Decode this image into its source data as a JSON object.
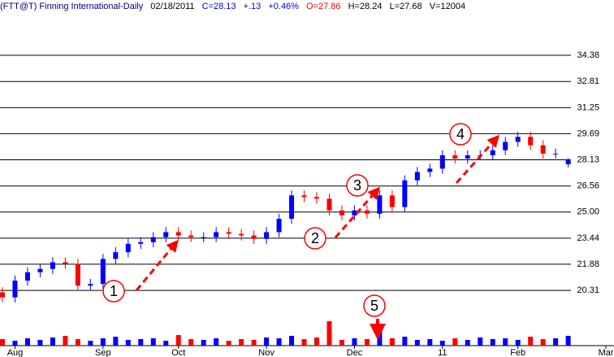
{
  "header": {
    "symbol": "(FTT@T) Finning International-Daily",
    "date": "02/18/2011",
    "close": "C=28.13",
    "change": "+.13",
    "change_pct": "+0.46%",
    "open": "O=27.86",
    "high": "H=28.24",
    "low": "L=27.68",
    "volume": "V=12004"
  },
  "chart_data": {
    "type": "candlestick",
    "categories": [
      null,
      "Aug",
      null,
      null,
      null,
      null,
      null,
      null,
      "Sep",
      null,
      null,
      null,
      null,
      null,
      "Oct",
      null,
      null,
      null,
      null,
      null,
      null,
      "Nov",
      null,
      null,
      null,
      null,
      null,
      null,
      "Dec",
      null,
      null,
      null,
      null,
      null,
      null,
      "11",
      null,
      null,
      null,
      null,
      null,
      "Feb",
      null,
      null,
      null,
      null,
      null,
      null,
      "Mar"
    ],
    "open": [
      20.2,
      19.9,
      20.9,
      21.4,
      21.6,
      22.0,
      21.9,
      20.6,
      20.7,
      22.2,
      22.6,
      23.1,
      23.2,
      23.5,
      23.8,
      23.6,
      23.5,
      23.5,
      23.8,
      23.7,
      23.6,
      23.4,
      23.8,
      24.6,
      26.0,
      25.9,
      25.8,
      25.1,
      24.8,
      25.1,
      24.9,
      26.0,
      25.3,
      26.9,
      27.4,
      27.6,
      28.4,
      28.2,
      28.4,
      28.4,
      28.7,
      29.2,
      29.5,
      29.0,
      28.5,
      27.86,
      null,
      null,
      null
    ],
    "high": [
      20.5,
      21.2,
      21.7,
      21.9,
      22.3,
      22.3,
      22.2,
      21.0,
      22.5,
      22.9,
      23.4,
      23.5,
      23.8,
      24.1,
      24.1,
      23.9,
      23.8,
      24.1,
      24.1,
      24.0,
      23.9,
      24.1,
      24.9,
      26.3,
      26.3,
      26.2,
      26.1,
      25.4,
      25.4,
      25.4,
      26.3,
      26.3,
      27.2,
      27.7,
      27.9,
      28.7,
      28.7,
      28.7,
      28.7,
      29.0,
      29.5,
      29.8,
      29.8,
      29.3,
      28.8,
      28.24,
      null,
      null,
      null
    ],
    "low": [
      19.6,
      19.6,
      20.6,
      21.1,
      21.3,
      21.6,
      20.3,
      20.3,
      20.4,
      21.9,
      22.3,
      22.8,
      22.9,
      23.2,
      23.3,
      23.2,
      23.2,
      23.2,
      23.4,
      23.3,
      23.1,
      23.1,
      23.5,
      24.3,
      25.6,
      25.5,
      24.8,
      24.5,
      24.5,
      24.6,
      24.6,
      25.0,
      25.0,
      26.6,
      27.1,
      27.3,
      27.9,
      27.9,
      28.1,
      28.1,
      28.4,
      28.9,
      28.7,
      28.2,
      28.2,
      27.68,
      null,
      null,
      null
    ],
    "close": [
      19.9,
      20.9,
      21.4,
      21.6,
      22.0,
      21.9,
      20.6,
      20.7,
      22.2,
      22.6,
      23.1,
      23.2,
      23.5,
      23.8,
      23.6,
      23.5,
      23.5,
      23.8,
      23.7,
      23.6,
      23.4,
      23.8,
      24.6,
      26.0,
      25.9,
      25.8,
      25.1,
      24.8,
      25.1,
      24.9,
      26.0,
      25.3,
      26.9,
      27.4,
      27.6,
      28.4,
      28.2,
      28.4,
      28.4,
      28.7,
      29.2,
      29.5,
      29.0,
      28.5,
      28.5,
      28.13,
      null,
      null,
      null
    ],
    "volume": [
      8000,
      6000,
      9000,
      7000,
      10000,
      12000,
      8000,
      6000,
      9000,
      11000,
      7000,
      8000,
      9000,
      6000,
      13000,
      8000,
      7000,
      9000,
      6000,
      8000,
      7000,
      10000,
      9000,
      12000,
      8000,
      10000,
      30000,
      7000,
      9000,
      8000,
      20000,
      9000,
      11000,
      7000,
      8000,
      6000,
      9000,
      7000,
      10000,
      8000,
      9000,
      7000,
      11000,
      8000,
      9000,
      12004,
      null,
      null,
      null
    ],
    "up_color": "#0000ff",
    "down_color": "#ff0000",
    "ylim": [
      19.2,
      35.5
    ],
    "yticks": [
      20.31,
      21.88,
      23.44,
      {
        "value": 25,
        "label": "25.00"
      },
      26.56,
      28.13,
      29.69,
      31.25,
      32.81,
      34.38
    ],
    "volume_lim": [
      0,
      45000
    ],
    "grid": true,
    "annotations": [
      "1",
      "2",
      "3",
      "4",
      "5"
    ]
  }
}
